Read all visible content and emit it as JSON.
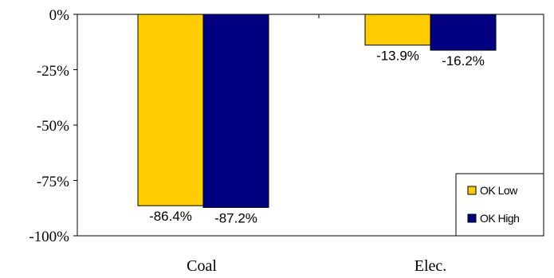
{
  "chart_data": {
    "type": "bar",
    "title": "",
    "xlabel": "",
    "ylabel": "",
    "categories": [
      "Coal",
      "Elec."
    ],
    "series": [
      {
        "name": "OK Low",
        "values": [
          -86.4,
          -13.9
        ],
        "color": "#ffcc00",
        "labels": [
          "-86.4%",
          "-13.9%"
        ]
      },
      {
        "name": "OK High",
        "values": [
          -87.2,
          -16.2
        ],
        "color": "#000080",
        "labels": [
          "-87.2%",
          "-16.2%"
        ]
      }
    ],
    "ylim": [
      -100,
      0
    ],
    "yticks": [
      0,
      -25,
      -50,
      -75,
      -100
    ],
    "ytick_labels": [
      "0%",
      "-25%",
      "-50%",
      "-75%",
      "-100%"
    ],
    "grid": false,
    "legend_position": "bottom-right"
  }
}
